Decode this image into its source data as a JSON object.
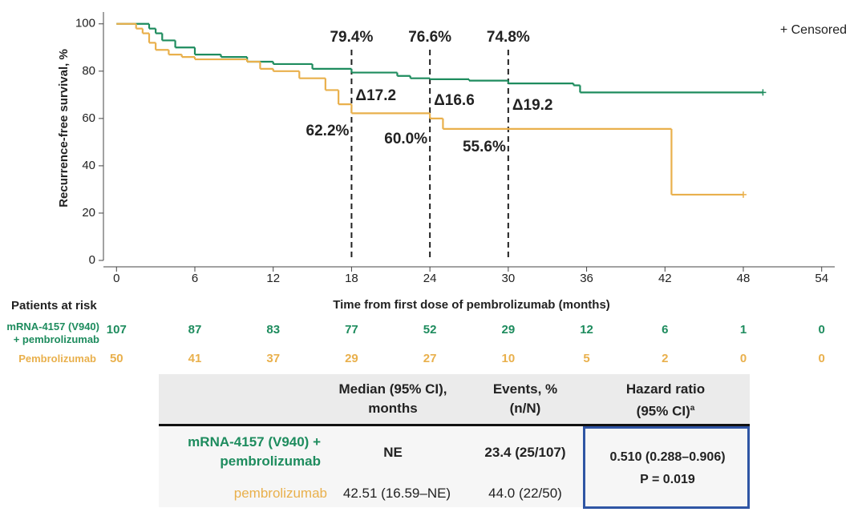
{
  "chart_data": {
    "type": "line",
    "step": true,
    "ylabel": "Recurrence-free survival, %",
    "xlabel": "Time from first dose of pembrolizumab (months)",
    "legend_note": "+ Censored",
    "xlim": [
      -1,
      55
    ],
    "xticks": [
      0,
      6,
      12,
      18,
      24,
      30,
      36,
      42,
      48,
      54
    ],
    "ylim": [
      0,
      105
    ],
    "yticks": [
      0,
      20,
      40,
      60,
      80,
      100
    ],
    "series": [
      {
        "name": "mRNA-4157 (V940) + pembrolizumab",
        "color": "#1e8c5e",
        "x": [
          0,
          2.5,
          3,
          3.5,
          4.5,
          6,
          8,
          10,
          12,
          15,
          18,
          21.5,
          22.5,
          24,
          27,
          30,
          35,
          35.5,
          49.5
        ],
        "values": [
          100,
          98,
          96,
          93,
          90,
          87,
          86,
          84,
          83,
          81,
          79.4,
          78,
          77,
          76.6,
          76,
          74.8,
          74,
          71,
          71
        ],
        "at_risk": [
          107,
          87,
          83,
          77,
          52,
          29,
          12,
          6,
          1,
          0
        ]
      },
      {
        "name": "Pembrolizumab",
        "color": "#e9b04c",
        "x": [
          0,
          1.5,
          2,
          2.5,
          3,
          4,
          5,
          6,
          10,
          11,
          12,
          14,
          16,
          17,
          18,
          24,
          25,
          42.5,
          48
        ],
        "values": [
          100,
          98,
          96,
          92,
          89,
          87,
          86,
          85,
          84,
          81,
          80,
          77,
          72,
          66,
          62.2,
          60,
          55.6,
          27.8,
          27.8
        ],
        "at_risk": [
          50,
          41,
          37,
          29,
          27,
          10,
          5,
          2,
          0,
          0
        ]
      }
    ],
    "at_risk_title": "Patients at risk",
    "landmarks": [
      {
        "x": 18,
        "top": "79.4%",
        "delta": "Δ17.2",
        "bottom": "62.2%"
      },
      {
        "x": 24,
        "top": "76.6%",
        "delta": "Δ16.6",
        "bottom": "60.0%"
      },
      {
        "x": 30,
        "top": "74.8%",
        "delta": "Δ19.2",
        "bottom": "55.6%"
      }
    ]
  },
  "table": {
    "header": [
      "Median (95% CI), months",
      "Events, % (n/N)",
      "Hazard ratio (95% CI)"
    ],
    "header_note": "a",
    "rows": [
      {
        "arm": "mRNA-4157 (V940) + pembrolizumab",
        "median": "NE",
        "events": "23.4 (25/107)"
      },
      {
        "arm": "pembrolizumab",
        "median": "42.51 (16.59–NE)",
        "events": "44.0 (22/50)"
      }
    ],
    "hazard_ratio": "0.510 (0.288–0.906)",
    "p_value": "P = 0.019"
  }
}
